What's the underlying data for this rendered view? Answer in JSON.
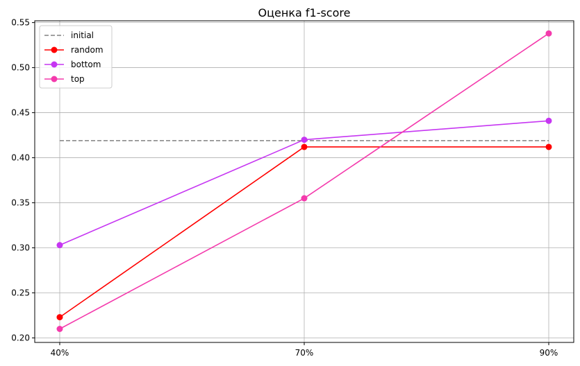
{
  "chart_data": {
    "type": "line",
    "title": "Оценка f1-score",
    "xlabel": "",
    "ylabel": "",
    "categories": [
      "40%",
      "70%",
      "90%"
    ],
    "ylim": [
      0.195,
      0.552
    ],
    "yticks": [
      0.2,
      0.25,
      0.3,
      0.35,
      0.4,
      0.45,
      0.5,
      0.55
    ],
    "ytick_labels": [
      "0.20",
      "0.25",
      "0.30",
      "0.35",
      "0.40",
      "0.45",
      "0.50",
      "0.55"
    ],
    "grid": true,
    "legend_position": "top-left",
    "series": [
      {
        "name": "initial",
        "values": [
          0.419,
          0.419,
          0.419
        ],
        "color": "#808080",
        "style": "dashed",
        "marker": "none"
      },
      {
        "name": "random",
        "values": [
          0.223,
          0.412,
          0.412
        ],
        "color": "#ff0000",
        "style": "solid",
        "marker": "circle"
      },
      {
        "name": "bottom",
        "values": [
          0.303,
          0.42,
          0.441
        ],
        "color": "#c636f2",
        "style": "solid",
        "marker": "circle"
      },
      {
        "name": "top",
        "values": [
          0.21,
          0.355,
          0.538
        ],
        "color": "#f43aac",
        "style": "solid",
        "marker": "circle"
      }
    ]
  }
}
